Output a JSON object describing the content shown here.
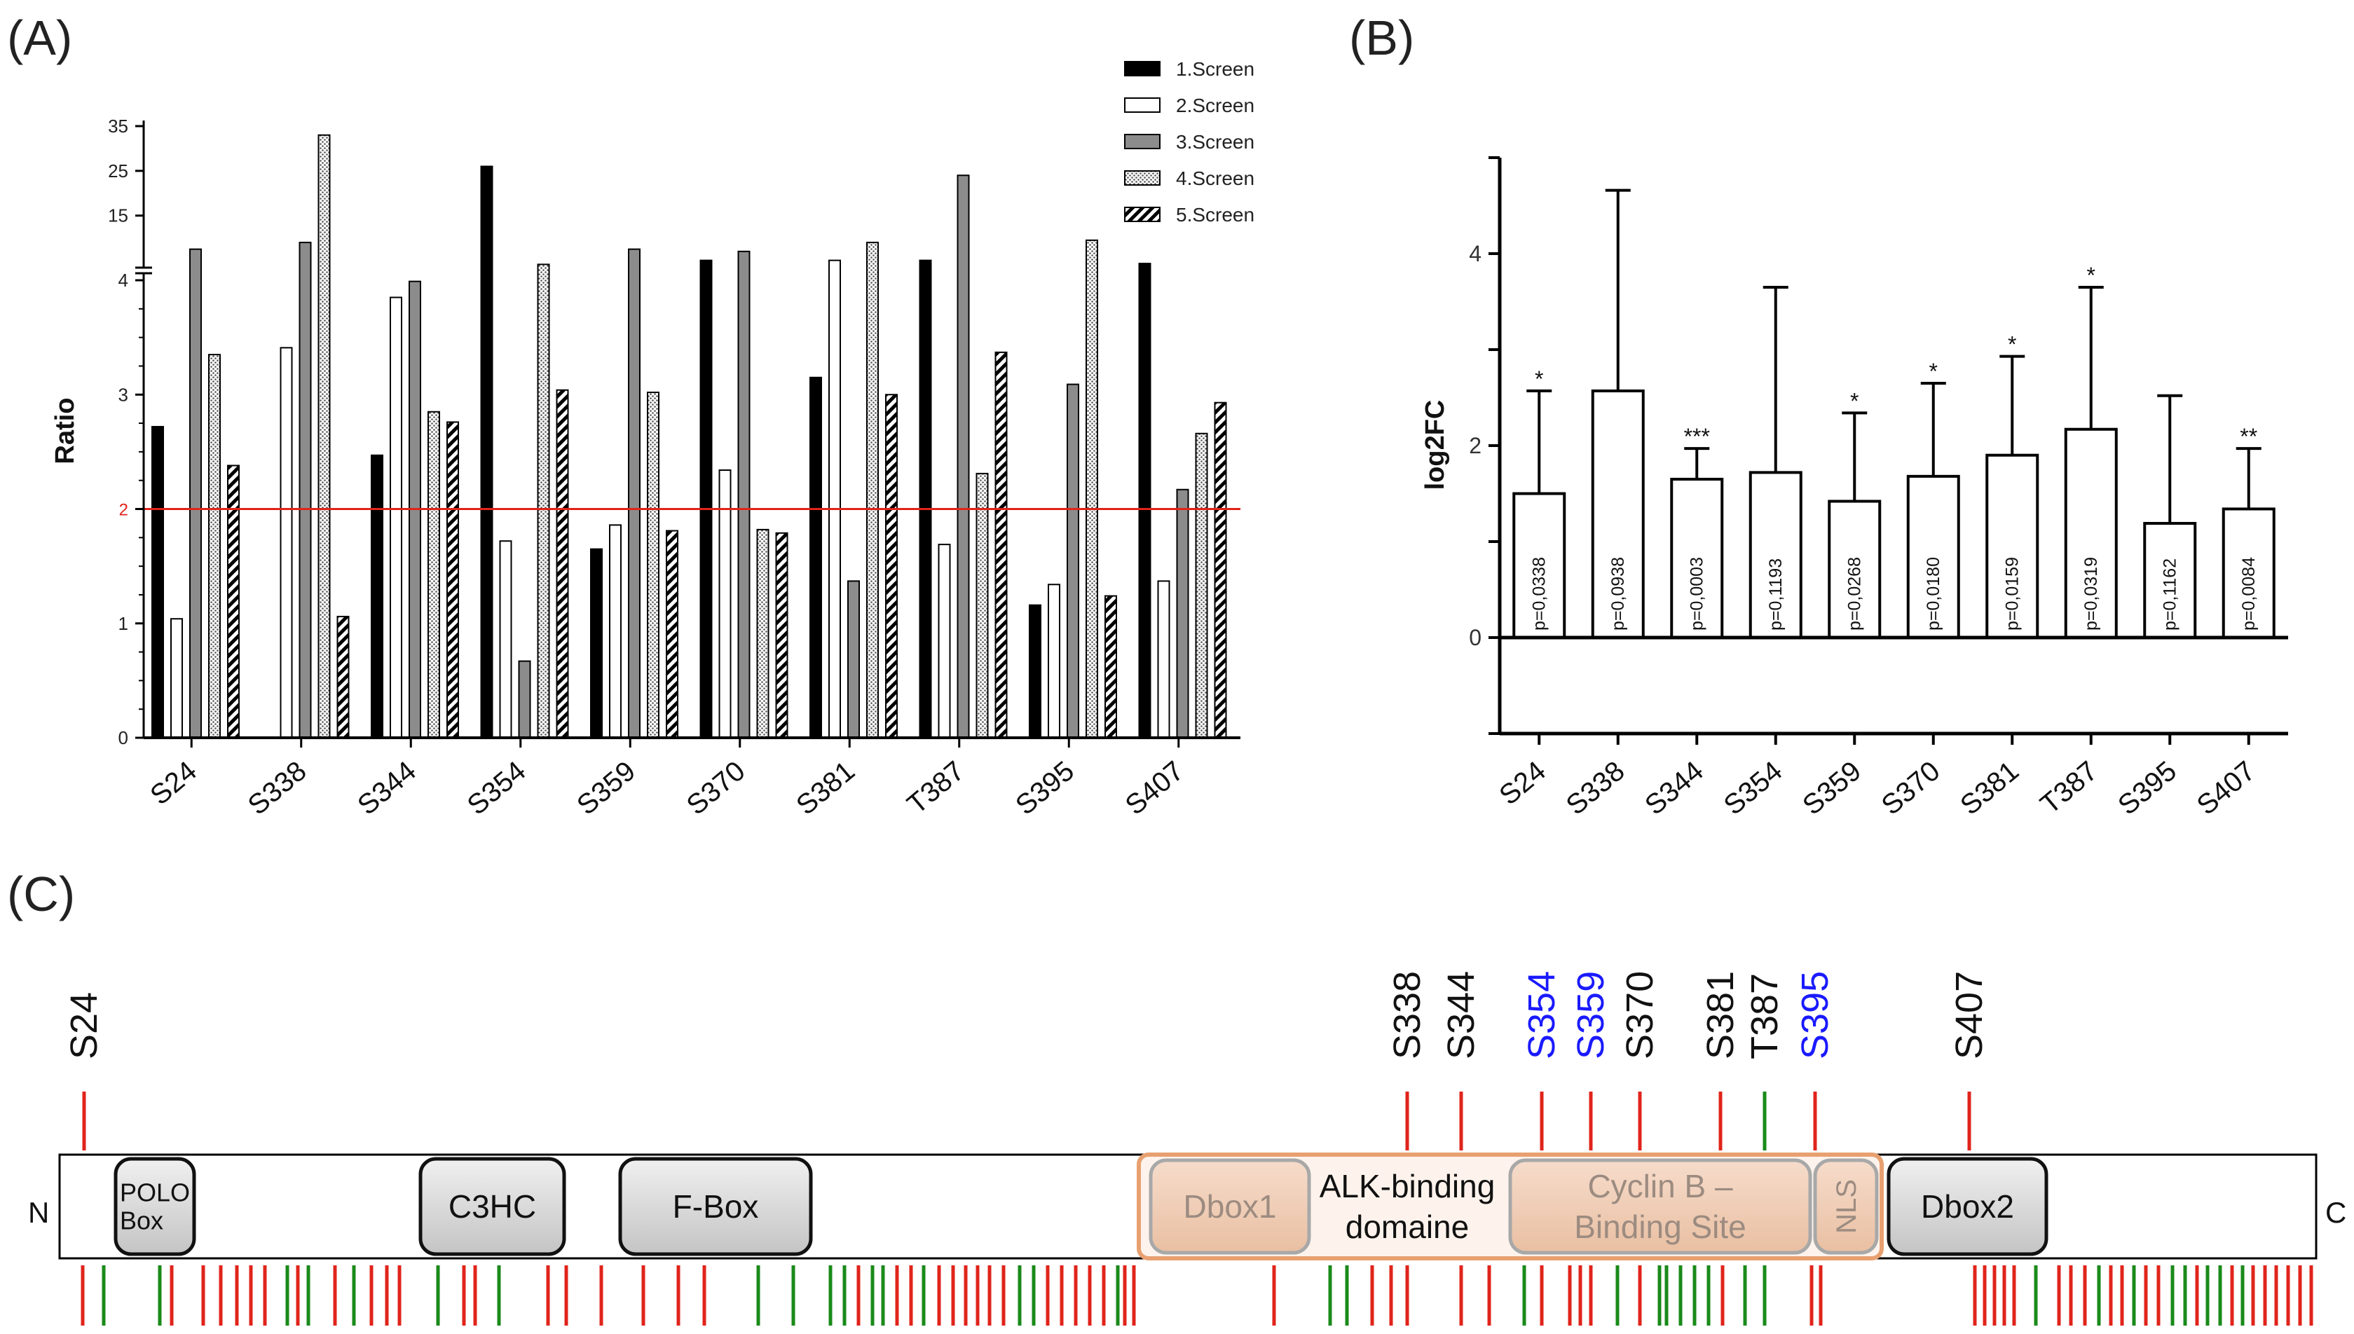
{
  "panel_labels": {
    "a": "(A)",
    "b": "(B)",
    "c": "(C)"
  },
  "colors": {
    "threshold": "#e0241b",
    "blue_site": "#1a1aff",
    "red_tick": "#e0241b",
    "green_tick": "#1a8a1a",
    "orange_region": "#e8a070"
  },
  "chart_data": [
    {
      "type": "bar",
      "panel": "(A)",
      "title": "",
      "xlabel": "",
      "ylabel": "Ratio",
      "categories": [
        "S24",
        "S338",
        "S344",
        "S354",
        "S359",
        "S370",
        "S381",
        "T387",
        "S395",
        "S407"
      ],
      "y_axis_break": {
        "lower_range": [
          0,
          4
        ],
        "upper_range": [
          4,
          35
        ]
      },
      "y_ticks_lower": [
        "0",
        "1",
        "2",
        "3",
        "4"
      ],
      "y_ticks_upper": [
        "15",
        "25",
        "35"
      ],
      "threshold": {
        "value": 2,
        "label": "2"
      },
      "legend_position": "top-right",
      "series": [
        {
          "name": "1.Screen",
          "pattern": "solid-black",
          "values": [
            2.72,
            null,
            2.47,
            26.0,
            1.65,
            5.0,
            3.15,
            5.0,
            1.16,
            4.3
          ]
        },
        {
          "name": "2.Screen",
          "pattern": "white",
          "values": [
            1.04,
            3.41,
            3.85,
            1.72,
            1.86,
            2.34,
            5.0,
            1.69,
            1.34,
            1.37
          ]
        },
        {
          "name": "3.Screen",
          "pattern": "gray",
          "values": [
            7.5,
            9.0,
            3.99,
            0.67,
            7.5,
            7.0,
            1.37,
            24.0,
            3.09,
            2.17
          ]
        },
        {
          "name": "4.Screen",
          "pattern": "dotted",
          "values": [
            3.35,
            33.0,
            2.85,
            4.1,
            3.02,
            1.82,
            9.0,
            2.31,
            9.5,
            2.66
          ]
        },
        {
          "name": "5.Screen",
          "pattern": "hatched",
          "values": [
            2.38,
            1.06,
            2.76,
            3.04,
            1.81,
            1.79,
            3.0,
            3.37,
            1.24,
            2.93
          ]
        }
      ]
    },
    {
      "type": "bar",
      "panel": "(B)",
      "title": "",
      "xlabel": "",
      "ylabel": "log2FC",
      "categories": [
        "S24",
        "S338",
        "S344",
        "S354",
        "S359",
        "S370",
        "S381",
        "T387",
        "S395",
        "S407"
      ],
      "ylim": [
        -1,
        5
      ],
      "y_ticks": [
        "0",
        "2",
        "4"
      ],
      "values": [
        1.5,
        2.57,
        1.65,
        1.72,
        1.42,
        1.68,
        1.9,
        2.17,
        1.19,
        1.34
      ],
      "error_upper": [
        2.57,
        4.66,
        1.97,
        3.65,
        2.34,
        2.65,
        2.93,
        3.65,
        2.52,
        1.97
      ],
      "p_values": [
        "p=0,0338",
        "p=0,0938",
        "p=0,0003",
        "p=0,1193",
        "p=0,0268",
        "p=0,0180",
        "p=0,0159",
        "p=0,0319",
        "p=0,1162",
        "p=0,0084"
      ],
      "significance": [
        "*",
        "",
        "***",
        "",
        "*",
        "*",
        "*",
        "*",
        "",
        "**"
      ]
    }
  ],
  "domain_map": {
    "n_label": "N",
    "c_label": "C",
    "domains": [
      {
        "label_lines": [
          "POLO",
          "Box"
        ]
      },
      {
        "label_lines": [
          "C3HC"
        ]
      },
      {
        "label_lines": [
          "F-Box"
        ]
      },
      {
        "label_lines": [
          "Dbox1"
        ]
      },
      {
        "label_lines": [
          "ALK-binding",
          "domaine"
        ]
      },
      {
        "label_lines": [
          "Cyclin B –",
          "Binding Site"
        ]
      },
      {
        "label_lines": [
          "NLS"
        ]
      },
      {
        "label_lines": [
          "Dbox2"
        ]
      }
    ],
    "sites": [
      {
        "label": "S24",
        "tick_color": "red",
        "label_color": "black"
      },
      {
        "label": "S338",
        "tick_color": "red",
        "label_color": "black"
      },
      {
        "label": "S344",
        "tick_color": "red",
        "label_color": "black"
      },
      {
        "label": "S354",
        "tick_color": "red",
        "label_color": "blue"
      },
      {
        "label": "S359",
        "tick_color": "red",
        "label_color": "blue"
      },
      {
        "label": "S370",
        "tick_color": "red",
        "label_color": "black"
      },
      {
        "label": "S381",
        "tick_color": "red",
        "label_color": "black"
      },
      {
        "label": "T387",
        "tick_color": "green",
        "label_color": "black"
      },
      {
        "label": "S395",
        "tick_color": "red",
        "label_color": "blue"
      },
      {
        "label": "S407",
        "tick_color": "red",
        "label_color": "black"
      }
    ]
  }
}
